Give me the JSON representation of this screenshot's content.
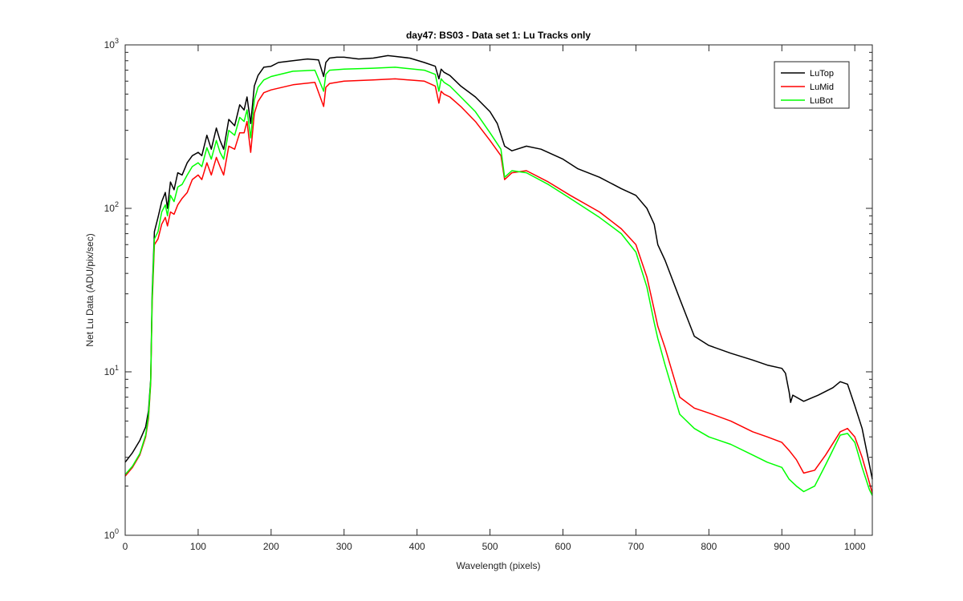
{
  "chart_data": {
    "type": "line",
    "title": "day47: BS03 - Data set 1: Lu Tracks only",
    "xlabel": "Wavelength (pixels)",
    "ylabel": "Net Lu Data (ADU/pix/sec)",
    "xlim": [
      0,
      1024
    ],
    "ylim": [
      1,
      1000
    ],
    "yscale": "log",
    "x_ticks": [
      0,
      100,
      200,
      300,
      400,
      500,
      600,
      700,
      800,
      900,
      1000
    ],
    "y_ticks": [
      {
        "base": "10",
        "exp": "0",
        "value": 1
      },
      {
        "base": "10",
        "exp": "1",
        "value": 10
      },
      {
        "base": "10",
        "exp": "2",
        "value": 100
      },
      {
        "base": "10",
        "exp": "3",
        "value": 1000
      }
    ],
    "grid": false,
    "legend_position": "top-right",
    "series": [
      {
        "name": "LuTop",
        "color": "#000000",
        "x": [
          0,
          10,
          20,
          28,
          32,
          35,
          37,
          40,
          45,
          50,
          55,
          58,
          62,
          67,
          72,
          78,
          85,
          92,
          100,
          105,
          112,
          118,
          125,
          130,
          135,
          142,
          150,
          157,
          163,
          167,
          172,
          177,
          182,
          190,
          200,
          210,
          230,
          250,
          265,
          272,
          275,
          280,
          290,
          300,
          320,
          340,
          360,
          370,
          390,
          410,
          425,
          430,
          433,
          437,
          445,
          460,
          480,
          500,
          510,
          520,
          530,
          550,
          570,
          600,
          620,
          650,
          680,
          700,
          715,
          725,
          730,
          740,
          760,
          780,
          800,
          830,
          860,
          880,
          900,
          905,
          910,
          912,
          915,
          930,
          950,
          970,
          980,
          990,
          1000,
          1010,
          1020,
          1024
        ],
        "y": [
          2.8,
          3.2,
          3.8,
          4.6,
          5.8,
          9,
          30,
          72,
          88,
          110,
          125,
          100,
          145,
          130,
          165,
          160,
          190,
          210,
          220,
          210,
          280,
          230,
          310,
          260,
          230,
          350,
          320,
          430,
          400,
          480,
          330,
          560,
          650,
          730,
          740,
          780,
          800,
          820,
          810,
          640,
          780,
          830,
          840,
          840,
          820,
          830,
          860,
          850,
          830,
          780,
          740,
          620,
          710,
          680,
          650,
          560,
          480,
          390,
          330,
          240,
          225,
          240,
          230,
          200,
          175,
          155,
          132,
          120,
          100,
          80,
          60,
          48,
          28,
          16.5,
          14.5,
          13,
          11.8,
          11,
          10.5,
          9.8,
          7.5,
          6.5,
          7.2,
          6.6,
          7.2,
          8,
          8.7,
          8.4,
          6.2,
          4.5,
          2.7,
          2.2
        ]
      },
      {
        "name": "LuMid",
        "color": "#ff0000",
        "x": [
          0,
          10,
          20,
          28,
          32,
          35,
          37,
          40,
          45,
          50,
          55,
          58,
          62,
          67,
          72,
          78,
          85,
          92,
          100,
          105,
          112,
          118,
          125,
          130,
          135,
          142,
          150,
          157,
          163,
          167,
          172,
          177,
          182,
          190,
          200,
          230,
          260,
          272,
          275,
          280,
          300,
          340,
          370,
          410,
          425,
          430,
          433,
          437,
          445,
          460,
          480,
          500,
          515,
          520,
          530,
          550,
          580,
          610,
          650,
          680,
          700,
          715,
          725,
          730,
          740,
          760,
          780,
          800,
          830,
          860,
          880,
          900,
          910,
          920,
          930,
          945,
          960,
          980,
          990,
          1000,
          1010,
          1020,
          1024
        ],
        "y": [
          2.3,
          2.6,
          3.1,
          4,
          5.2,
          8.5,
          26,
          60,
          65,
          80,
          88,
          78,
          95,
          92,
          105,
          115,
          125,
          150,
          160,
          150,
          190,
          160,
          205,
          180,
          160,
          240,
          230,
          290,
          290,
          340,
          220,
          380,
          450,
          510,
          530,
          570,
          590,
          420,
          550,
          580,
          600,
          610,
          620,
          600,
          560,
          440,
          520,
          500,
          480,
          420,
          340,
          260,
          210,
          150,
          165,
          170,
          145,
          120,
          95,
          75,
          60,
          38,
          24,
          19,
          14,
          7,
          6,
          5.6,
          5,
          4.3,
          4,
          3.7,
          3.3,
          2.9,
          2.4,
          2.5,
          3.1,
          4.3,
          4.5,
          4,
          3,
          2.1,
          1.8
        ]
      },
      {
        "name": "LuBot",
        "color": "#00ff00",
        "x": [
          0,
          10,
          20,
          28,
          32,
          35,
          37,
          40,
          45,
          50,
          55,
          58,
          62,
          67,
          72,
          78,
          85,
          92,
          100,
          105,
          112,
          118,
          125,
          130,
          135,
          142,
          150,
          157,
          163,
          167,
          172,
          177,
          182,
          190,
          200,
          230,
          260,
          272,
          275,
          280,
          300,
          340,
          370,
          410,
          425,
          430,
          433,
          437,
          445,
          460,
          480,
          500,
          515,
          520,
          530,
          550,
          580,
          610,
          650,
          680,
          700,
          715,
          725,
          730,
          740,
          760,
          780,
          800,
          830,
          860,
          880,
          900,
          910,
          920,
          930,
          945,
          960,
          980,
          990,
          1000,
          1010,
          1020,
          1024
        ],
        "y": [
          2.35,
          2.65,
          3.15,
          4.1,
          5.4,
          8.8,
          28,
          65,
          72,
          95,
          105,
          90,
          120,
          110,
          135,
          140,
          160,
          180,
          190,
          180,
          235,
          200,
          260,
          220,
          200,
          300,
          280,
          360,
          340,
          400,
          270,
          460,
          550,
          610,
          640,
          690,
          700,
          520,
          660,
          700,
          710,
          720,
          730,
          700,
          660,
          520,
          620,
          590,
          560,
          480,
          390,
          290,
          230,
          155,
          170,
          165,
          140,
          115,
          88,
          70,
          54,
          33,
          20,
          16,
          11,
          5.5,
          4.5,
          4,
          3.6,
          3.1,
          2.8,
          2.6,
          2.2,
          2,
          1.85,
          2,
          2.7,
          4.1,
          4.2,
          3.7,
          2.6,
          1.9,
          1.75
        ]
      }
    ]
  }
}
